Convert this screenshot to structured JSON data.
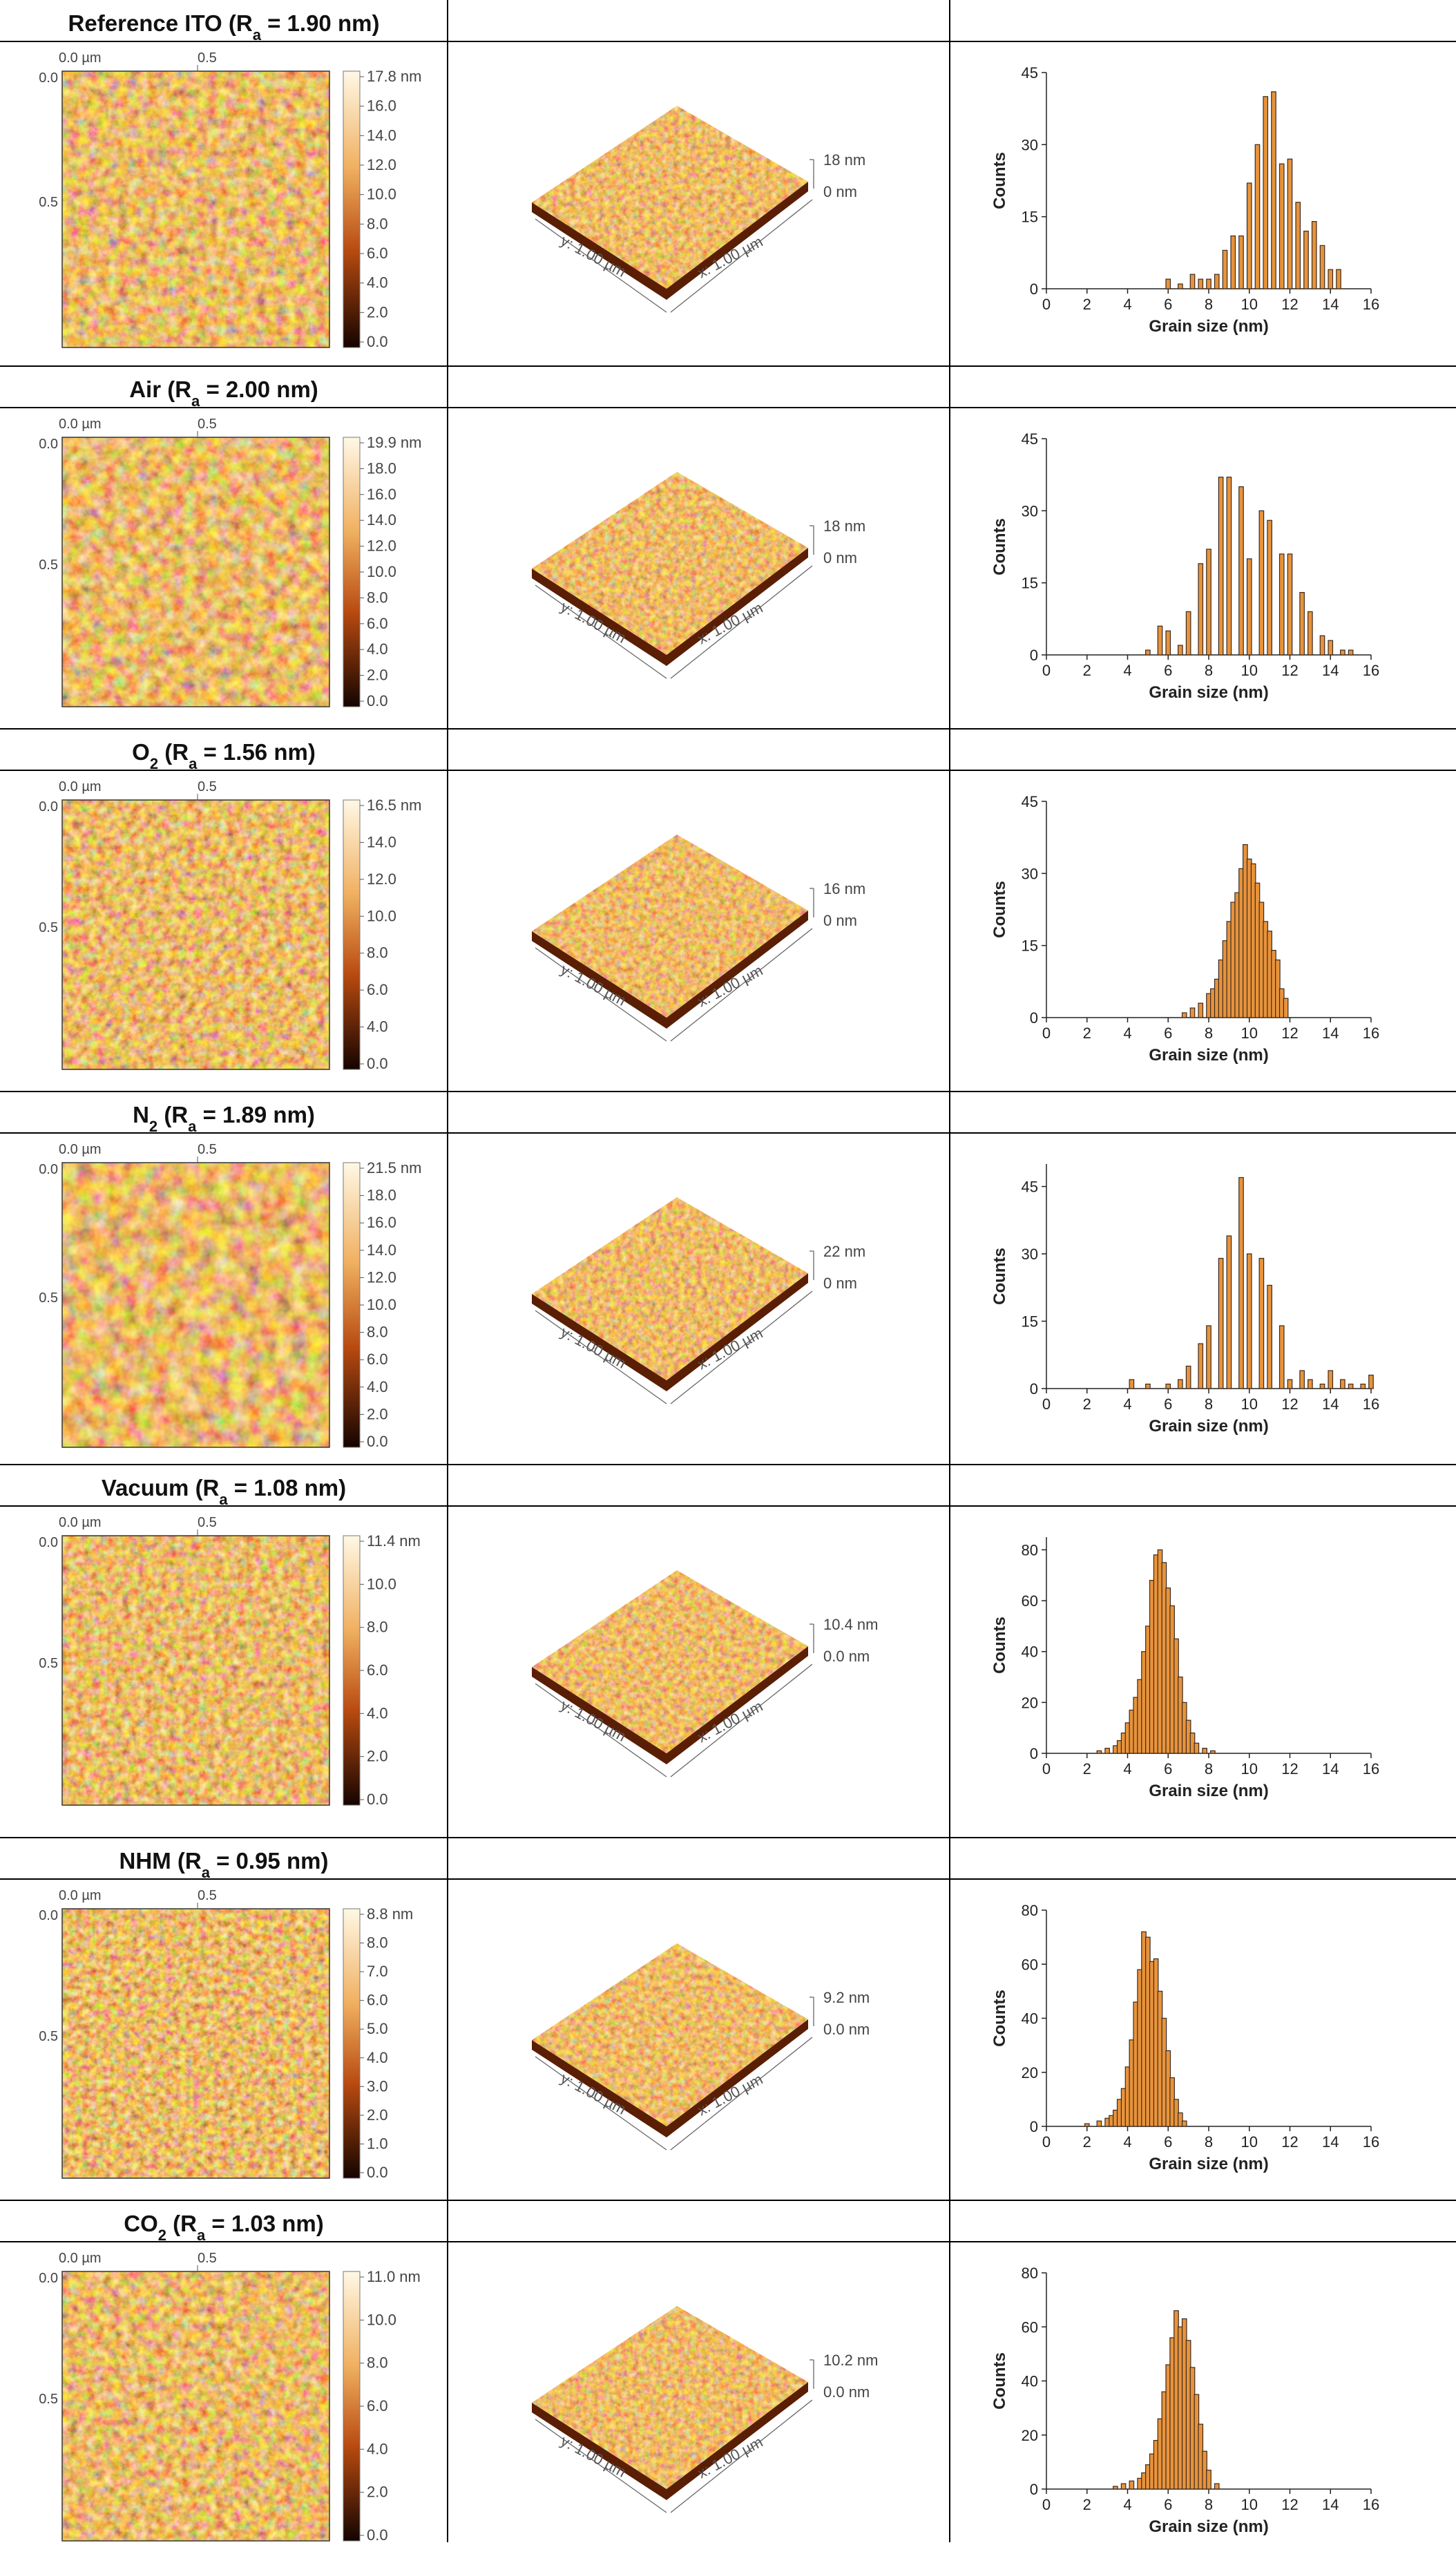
{
  "colors": {
    "afm_dark": "#1a0500",
    "afm_mid": "#b8470e",
    "afm_light": "#fff6dc",
    "bar_light": "#e8933a",
    "bar_dark": "#3a2a22",
    "grid_line": "#000000"
  },
  "common": {
    "x_tick_top_left": "0.0 µm",
    "x_tick_top_right": "0.5",
    "y_tick_top": "0.0",
    "y_tick_mid": "0.5",
    "axis_3d_y": "y: 1.00 µm",
    "axis_3d_x": "x: 1.00 µm",
    "hist_xlabel": "Grain size (nm)",
    "hist_ylabel": "Counts",
    "hist_xticks": [
      "0",
      "2",
      "4",
      "6",
      "8",
      "10",
      "12",
      "14",
      "16"
    ]
  },
  "samples": [
    {
      "title": "Reference ITO (R",
      "title_sub": "a",
      "title_tail": " = 1.90 nm)",
      "colorbar_ticks": [
        "17.8 nm",
        "16.0",
        "14.0",
        "12.0",
        "10.0",
        "8.0",
        "6.0",
        "4.0",
        "2.0",
        "0.0"
      ],
      "z_top": "18 nm",
      "z_bottom": "0 nm",
      "hist_yticks": [
        "0",
        "15",
        "30",
        "45"
      ],
      "hist_ymax": 45
    },
    {
      "title": "Air (R",
      "title_sub": "a",
      "title_tail": " = 2.00 nm)",
      "colorbar_ticks": [
        "19.9 nm",
        "18.0",
        "16.0",
        "14.0",
        "12.0",
        "10.0",
        "8.0",
        "6.0",
        "4.0",
        "2.0",
        "0.0"
      ],
      "z_top": "18 nm",
      "z_bottom": "0 nm",
      "hist_yticks": [
        "0",
        "15",
        "30",
        "45"
      ],
      "hist_ymax": 45
    },
    {
      "title": "O",
      "title_sub": "2",
      "title_tail": " (R",
      "title_sub2": "a",
      "title_tail2": " = 1.56 nm)",
      "colorbar_ticks": [
        "16.5 nm",
        "14.0",
        "12.0",
        "10.0",
        "8.0",
        "6.0",
        "4.0",
        "0.0"
      ],
      "z_top": "16 nm",
      "z_bottom": "0 nm",
      "hist_yticks": [
        "0",
        "15",
        "30",
        "45"
      ],
      "hist_ymax": 45
    },
    {
      "title": "N",
      "title_sub": "2",
      "title_tail": " (R",
      "title_sub2": "a",
      "title_tail2": " = 1.89 nm)",
      "colorbar_ticks": [
        "21.5 nm",
        "18.0",
        "16.0",
        "14.0",
        "12.0",
        "10.0",
        "8.0",
        "6.0",
        "4.0",
        "2.0",
        "0.0"
      ],
      "z_top": "22 nm",
      "z_bottom": "0 nm",
      "hist_yticks": [
        "0",
        "15",
        "30",
        "45"
      ],
      "hist_ymax": 50
    },
    {
      "title": "Vacuum (R",
      "title_sub": "a",
      "title_tail": " = 1.08 nm)",
      "colorbar_ticks": [
        "11.4 nm",
        "10.0",
        "8.0",
        "6.0",
        "4.0",
        "2.0",
        "0.0"
      ],
      "z_top": "10.4 nm",
      "z_bottom": "0.0 nm",
      "hist_yticks": [
        "0",
        "20",
        "40",
        "60",
        "80"
      ],
      "hist_ymax": 85
    },
    {
      "title": "NHM (R",
      "title_sub": "a",
      "title_tail": " = 0.95 nm)",
      "colorbar_ticks": [
        "8.8 nm",
        "8.0",
        "7.0",
        "6.0",
        "5.0",
        "4.0",
        "3.0",
        "2.0",
        "1.0",
        "0.0"
      ],
      "z_top": "9.2 nm",
      "z_bottom": "0.0 nm",
      "hist_yticks": [
        "0",
        "20",
        "40",
        "60",
        "80"
      ],
      "hist_ymax": 80
    },
    {
      "title": "CO",
      "title_sub": "2",
      "title_tail": " (R",
      "title_sub2": "a",
      "title_tail2": " = 1.03 nm)",
      "colorbar_ticks": [
        "11.0 nm",
        "10.0",
        "8.0",
        "6.0",
        "4.0",
        "2.0",
        "0.0"
      ],
      "z_top": "10.2 nm",
      "z_bottom": "0.0 nm",
      "hist_yticks": [
        "0",
        "20",
        "40",
        "60",
        "80"
      ],
      "hist_ymax": 80
    }
  ],
  "chart_data": [
    {
      "type": "bar",
      "title": "",
      "xlabel": "Grain size (nm)",
      "ylabel": "Counts",
      "xlim": [
        0,
        16
      ],
      "ylim": [
        0,
        45
      ],
      "x": [
        6.0,
        6.6,
        7.2,
        7.6,
        8.0,
        8.4,
        8.8,
        9.2,
        9.6,
        10.0,
        10.4,
        10.8,
        11.2,
        11.6,
        12.0,
        12.4,
        12.8,
        13.2,
        13.6,
        14.0,
        14.4
      ],
      "values": [
        2,
        1,
        3,
        2,
        2,
        3,
        8,
        11,
        11,
        22,
        30,
        40,
        41,
        26,
        27,
        18,
        12,
        14,
        9,
        4,
        4
      ]
    },
    {
      "type": "bar",
      "title": "",
      "xlabel": "Grain size (nm)",
      "ylabel": "Counts",
      "xlim": [
        0,
        16
      ],
      "ylim": [
        0,
        45
      ],
      "x": [
        5.0,
        5.6,
        6.0,
        6.6,
        7.0,
        7.6,
        8.0,
        8.6,
        9.0,
        9.6,
        10.0,
        10.6,
        11.0,
        11.6,
        12.0,
        12.6,
        13.0,
        13.6,
        14.0,
        14.6,
        15.0
      ],
      "values": [
        1,
        6,
        5,
        2,
        9,
        19,
        22,
        37,
        37,
        35,
        20,
        30,
        28,
        21,
        21,
        13,
        9,
        4,
        3,
        1,
        1
      ]
    },
    {
      "type": "bar",
      "title": "",
      "xlabel": "Grain size (nm)",
      "ylabel": "Counts",
      "xlim": [
        0,
        16
      ],
      "ylim": [
        0,
        45
      ],
      "x": [
        6.8,
        7.2,
        7.6,
        8.0,
        8.2,
        8.4,
        8.6,
        8.8,
        9.0,
        9.2,
        9.4,
        9.6,
        9.8,
        10.0,
        10.2,
        10.4,
        10.6,
        10.8,
        11.0,
        11.2,
        11.4,
        11.6,
        11.8
      ],
      "values": [
        1,
        2,
        3,
        5,
        6,
        8,
        12,
        16,
        20,
        24,
        26,
        31,
        36,
        33,
        32,
        28,
        24,
        20,
        18,
        14,
        12,
        6,
        4
      ]
    },
    {
      "type": "bar",
      "title": "",
      "xlabel": "Grain size (nm)",
      "ylabel": "Counts",
      "xlim": [
        0,
        16
      ],
      "ylim": [
        0,
        50
      ],
      "x": [
        0.0,
        1.0,
        2.0,
        3.0,
        4.2,
        5.0,
        6.0,
        6.6,
        7.0,
        7.6,
        8.0,
        8.6,
        9.0,
        9.6,
        10.0,
        10.6,
        11.0,
        11.6,
        12.0,
        12.6,
        13.0,
        13.6,
        14.0,
        14.6,
        15.0,
        15.6,
        16.0
      ],
      "values": [
        0,
        0,
        0,
        0,
        2,
        1,
        1,
        2,
        5,
        10,
        14,
        29,
        34,
        47,
        30,
        29,
        23,
        14,
        2,
        4,
        2,
        1,
        4,
        2,
        1,
        1,
        3
      ]
    },
    {
      "type": "bar",
      "title": "",
      "xlabel": "Grain size (nm)",
      "ylabel": "Counts",
      "xlim": [
        0,
        16
      ],
      "ylim": [
        0,
        85
      ],
      "x": [
        2.6,
        3.0,
        3.4,
        3.6,
        3.8,
        4.0,
        4.2,
        4.4,
        4.6,
        4.8,
        5.0,
        5.2,
        5.4,
        5.6,
        5.8,
        6.0,
        6.2,
        6.4,
        6.6,
        6.8,
        7.0,
        7.2,
        7.4,
        7.8,
        8.2
      ],
      "values": [
        1,
        2,
        3,
        5,
        8,
        12,
        17,
        22,
        29,
        40,
        50,
        68,
        78,
        80,
        75,
        65,
        58,
        45,
        30,
        20,
        13,
        8,
        4,
        2,
        1
      ]
    },
    {
      "type": "bar",
      "title": "",
      "xlabel": "Grain size (nm)",
      "ylabel": "Counts",
      "xlim": [
        0,
        16
      ],
      "ylim": [
        0,
        80
      ],
      "x": [
        2.0,
        2.6,
        3.0,
        3.2,
        3.4,
        3.6,
        3.8,
        4.0,
        4.2,
        4.4,
        4.6,
        4.8,
        5.0,
        5.2,
        5.4,
        5.6,
        5.8,
        6.0,
        6.2,
        6.4,
        6.6,
        6.8
      ],
      "values": [
        1,
        2,
        3,
        4,
        6,
        10,
        14,
        22,
        32,
        46,
        58,
        72,
        70,
        61,
        62,
        50,
        40,
        28,
        18,
        10,
        5,
        2
      ]
    },
    {
      "type": "bar",
      "title": "",
      "xlabel": "Grain size (nm)",
      "ylabel": "Counts",
      "xlim": [
        0,
        16
      ],
      "ylim": [
        0,
        80
      ],
      "x": [
        3.4,
        3.8,
        4.2,
        4.6,
        4.8,
        5.0,
        5.2,
        5.4,
        5.6,
        5.8,
        6.0,
        6.2,
        6.4,
        6.6,
        6.8,
        7.0,
        7.2,
        7.4,
        7.6,
        7.8,
        8.0,
        8.4
      ],
      "values": [
        1,
        2,
        3,
        4,
        6,
        9,
        13,
        18,
        26,
        36,
        46,
        56,
        66,
        60,
        63,
        55,
        45,
        35,
        24,
        14,
        7,
        2
      ]
    }
  ]
}
